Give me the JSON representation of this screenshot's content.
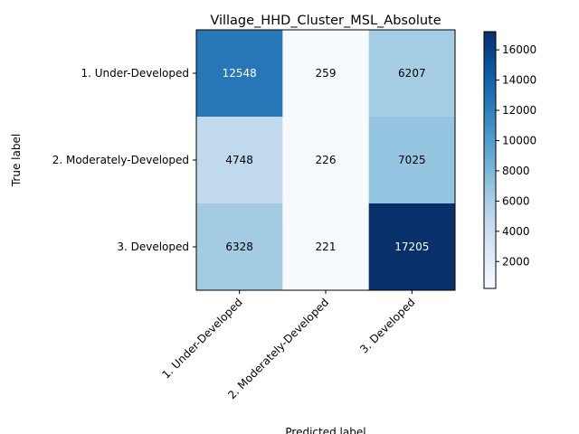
{
  "chart_data": {
    "type": "heatmap",
    "title": "Village_HHD_Cluster_MSL_Absolute",
    "xlabel": "Predicted label",
    "ylabel": "True label",
    "x_categories": [
      "1. Under-Developed",
      "2. Moderately-Developed",
      "3. Developed"
    ],
    "y_categories": [
      "1. Under-Developed",
      "2. Moderately-Developed",
      "3. Developed"
    ],
    "values": [
      [
        12548,
        259,
        6207
      ],
      [
        4748,
        226,
        7025
      ],
      [
        6328,
        221,
        17205
      ]
    ],
    "colormap": "Blues",
    "colorbar": {
      "range": [
        221,
        17205
      ],
      "ticks": [
        2000,
        4000,
        6000,
        8000,
        10000,
        12000,
        14000,
        16000
      ],
      "tick_labels": [
        "2000",
        "4000",
        "6000",
        "8000",
        "10000",
        "12000",
        "14000",
        "16000"
      ]
    },
    "text_colors": {
      "light": "#ffffff",
      "dark": "#000000"
    },
    "grid": false
  }
}
